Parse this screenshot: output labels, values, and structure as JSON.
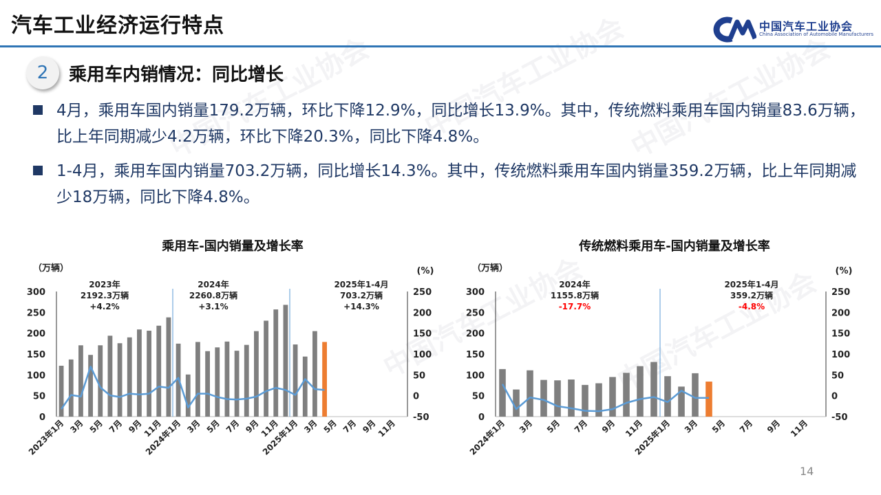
{
  "header": {
    "title": "汽车工业经济运行特点"
  },
  "logo": {
    "cn": "中国汽车工业协会",
    "en": "China Association of Automobile Manufacturers"
  },
  "section": {
    "number": "2",
    "title": "乘用车内销情况：同比增长"
  },
  "bullets": [
    {
      "text": "4月，乘用车国内销量179.2万辆，环比下降12.9%，同比增长13.9%。其中，传统燃料乘用车国内销量83.6万辆，比上年同期减少4.2万辆，环比下降20.3%，同比下降4.8%。"
    },
    {
      "text": "1-4月，乘用车国内销量703.2万辆，同比增长14.3%。其中，传统燃料乘用车国内销量359.2万辆，比上年同期减少18万辆，同比下降4.8%。"
    }
  ],
  "page_number": "14",
  "colors": {
    "bar": "#7f7f7f",
    "bar_current": "#ed7d31",
    "line": "#5b9bd5",
    "negative": "#ff0000",
    "divider": "#5b9bd5",
    "heading": "#1f3864",
    "accent": "#2e74b5"
  },
  "chart_data": [
    {
      "type": "bar",
      "title": "乘用车-国内销量及增长率",
      "ylabel": "（万辆）",
      "y2label": "(%)",
      "ylim": [
        0,
        300
      ],
      "y2lim": [
        -50,
        250
      ],
      "y_ticks": [
        "300",
        "250",
        "200",
        "150",
        "100",
        "50",
        "0"
      ],
      "y2_ticks": [
        "250",
        "200",
        "150",
        "100",
        "50",
        "0",
        "-50"
      ],
      "categories": [
        "2023年1月",
        "2月",
        "3月",
        "4月",
        "5月",
        "6月",
        "7月",
        "8月",
        "9月",
        "10月",
        "11月",
        "12月",
        "2024年1月",
        "2月",
        "3月",
        "4月",
        "5月",
        "6月",
        "7月",
        "8月",
        "9月",
        "10月",
        "11月",
        "12月",
        "2025年1月",
        "2月",
        "3月",
        "4月",
        "5月",
        "6月",
        "7月",
        "8月",
        "9月",
        "10月",
        "11月",
        "12月"
      ],
      "x_tick_labels": [
        "2023年1月",
        "",
        "3月",
        "",
        "5月",
        "",
        "7月",
        "",
        "9月",
        "",
        "11月",
        "",
        "2024年1月",
        "",
        "3月",
        "",
        "5月",
        "",
        "7月",
        "",
        "9月",
        "",
        "11月",
        "",
        "2025年1月",
        "",
        "3月",
        "",
        "5月",
        "",
        "7月",
        "",
        "9月",
        "",
        "11月",
        ""
      ],
      "series": [
        {
          "kind": "bar",
          "values": [
            122,
            137,
            171,
            148,
            171,
            194,
            176,
            190,
            209,
            206,
            218,
            238,
            175,
            101,
            179,
            157,
            166,
            180,
            158,
            172,
            205,
            230,
            257,
            268,
            173,
            144,
            205,
            179,
            null,
            null,
            null,
            null,
            null,
            null,
            null,
            null
          ]
        },
        {
          "kind": "line",
          "values": [
            -32,
            2,
            -2,
            70,
            20,
            1,
            -3,
            5,
            3,
            5,
            22,
            19,
            43,
            -28,
            5,
            5,
            -3,
            -8,
            -9,
            -7,
            -2,
            11,
            19,
            14,
            2,
            40,
            16,
            14,
            null,
            null,
            null,
            null,
            null,
            null,
            null,
            null
          ]
        }
      ],
      "current_index": 27,
      "dividers": [
        12,
        24
      ],
      "annotations": [
        {
          "period": "2023年",
          "total": "2192.3万辆",
          "growth": "+4.2%",
          "negative": false
        },
        {
          "period": "2024年",
          "total": "2260.8万辆",
          "growth": "+3.1%",
          "negative": false
        },
        {
          "period": "2025年1-4月",
          "total": "703.2万辆",
          "growth": "+14.3%",
          "negative": false
        }
      ]
    },
    {
      "type": "bar",
      "title": "传统燃料乘用车-国内销量及增长率",
      "ylabel": "（万辆）",
      "y2label": "(%)",
      "ylim": [
        0,
        300
      ],
      "y2lim": [
        -50,
        250
      ],
      "y_ticks": [
        "300",
        "250",
        "200",
        "150",
        "100",
        "50",
        "0"
      ],
      "y2_ticks": [
        "250",
        "200",
        "150",
        "100",
        "50",
        "0",
        "-50"
      ],
      "categories": [
        "2024年1月",
        "2月",
        "3月",
        "4月",
        "5月",
        "6月",
        "7月",
        "8月",
        "9月",
        "10月",
        "11月",
        "12月",
        "2025年1月",
        "2月",
        "3月",
        "4月",
        "5月",
        "6月",
        "7月",
        "8月",
        "9月",
        "10月",
        "11月",
        "12月"
      ],
      "x_tick_labels": [
        "2024年1月",
        "",
        "3月",
        "",
        "5月",
        "",
        "7月",
        "",
        "9月",
        "",
        "11月",
        "",
        "2025年1月",
        "",
        "3月",
        "",
        "5月",
        "",
        "7月",
        "",
        "9月",
        "",
        "11月",
        ""
      ],
      "series": [
        {
          "kind": "bar",
          "values": [
            114,
            65,
            111,
            88,
            87,
            89,
            76,
            80,
            95,
            105,
            121,
            131,
            97,
            72,
            104,
            84,
            null,
            null,
            null,
            null,
            null,
            null,
            null,
            null
          ]
        },
        {
          "kind": "line",
          "values": [
            28,
            -32,
            -4,
            -10,
            -25,
            -30,
            -36,
            -37,
            -32,
            -17,
            -8,
            -3,
            -15,
            12,
            -5,
            -5,
            null,
            null,
            null,
            null,
            null,
            null,
            null,
            null
          ]
        }
      ],
      "current_index": 15,
      "dividers": [
        12
      ],
      "annotations": [
        {
          "period": "2024年",
          "total": "1155.8万辆",
          "growth": "-17.7%",
          "negative": true
        },
        {
          "period": "2025年1-4月",
          "total": "359.2万辆",
          "growth": "-4.8%",
          "negative": true
        }
      ]
    }
  ]
}
